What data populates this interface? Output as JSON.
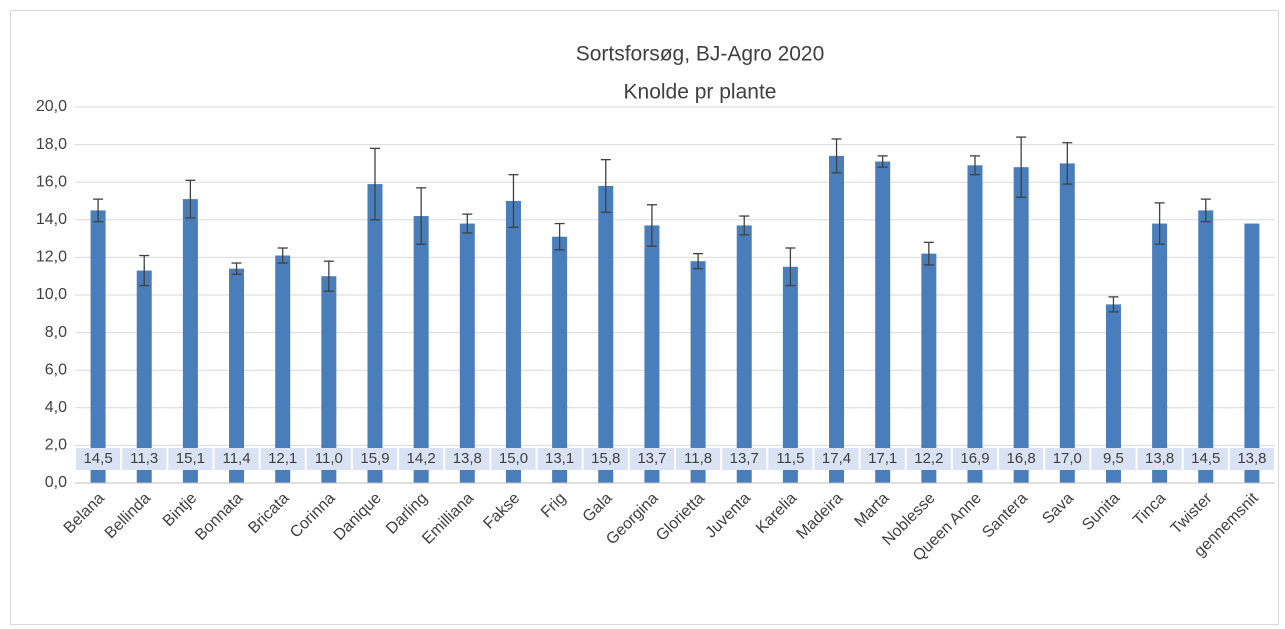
{
  "chart_data": {
    "type": "bar",
    "title": [
      "Sortsforsøg, BJ-Agro 2020",
      "Knolde pr plante"
    ],
    "categories": [
      "Belana",
      "Bellinda",
      "Bintje",
      "Bonnata",
      "Bricata",
      "Corinna",
      "Danique",
      "Darling",
      "Emilliana",
      "Fakse",
      "Frig",
      "Gala",
      "Georgina",
      "Glorietta",
      "Juventa",
      "Karelia",
      "Madeira",
      "Marta",
      "Noblesse",
      "Queen Anne",
      "Santera",
      "Sava",
      "Sunita",
      "Tinca",
      "Twister",
      "gennemsnit"
    ],
    "values": [
      14.5,
      11.3,
      15.1,
      11.4,
      12.1,
      11.0,
      15.9,
      14.2,
      13.8,
      15.0,
      13.1,
      15.8,
      13.7,
      11.8,
      13.7,
      11.5,
      17.4,
      17.1,
      12.2,
      16.9,
      16.8,
      17.0,
      9.5,
      13.8,
      14.5,
      13.8
    ],
    "value_labels": [
      "14,5",
      "11,3",
      "15,1",
      "11,4",
      "12,1",
      "11,0",
      "15,9",
      "14,2",
      "13,8",
      "15,0",
      "13,1",
      "15,8",
      "13,7",
      "11,8",
      "13,7",
      "11,5",
      "17,4",
      "17,1",
      "12,2",
      "16,9",
      "16,8",
      "17,0",
      "9,5",
      "13,8",
      "14,5",
      "13,8"
    ],
    "errors": [
      0.6,
      0.8,
      1.0,
      0.3,
      0.4,
      0.8,
      1.9,
      1.5,
      0.5,
      1.4,
      0.7,
      1.4,
      1.1,
      0.4,
      0.5,
      1.0,
      0.9,
      0.3,
      0.6,
      0.5,
      1.6,
      1.1,
      0.4,
      1.1,
      0.6,
      null
    ],
    "color": "#4a7ebb",
    "ylim": [
      0,
      20
    ],
    "yticks": [
      {
        "value": 0,
        "label": "0,0"
      },
      {
        "value": 2,
        "label": "2,0"
      },
      {
        "value": 4,
        "label": "4,0"
      },
      {
        "value": 6,
        "label": "6,0"
      },
      {
        "value": 8,
        "label": "8,0"
      },
      {
        "value": 10,
        "label": "10,0"
      },
      {
        "value": 12,
        "label": "12,0"
      },
      {
        "value": 14,
        "label": "14,0"
      },
      {
        "value": 16,
        "label": "16,0"
      },
      {
        "value": 18,
        "label": "18,0"
      },
      {
        "value": 20,
        "label": "20,0"
      }
    ],
    "grid": true
  }
}
